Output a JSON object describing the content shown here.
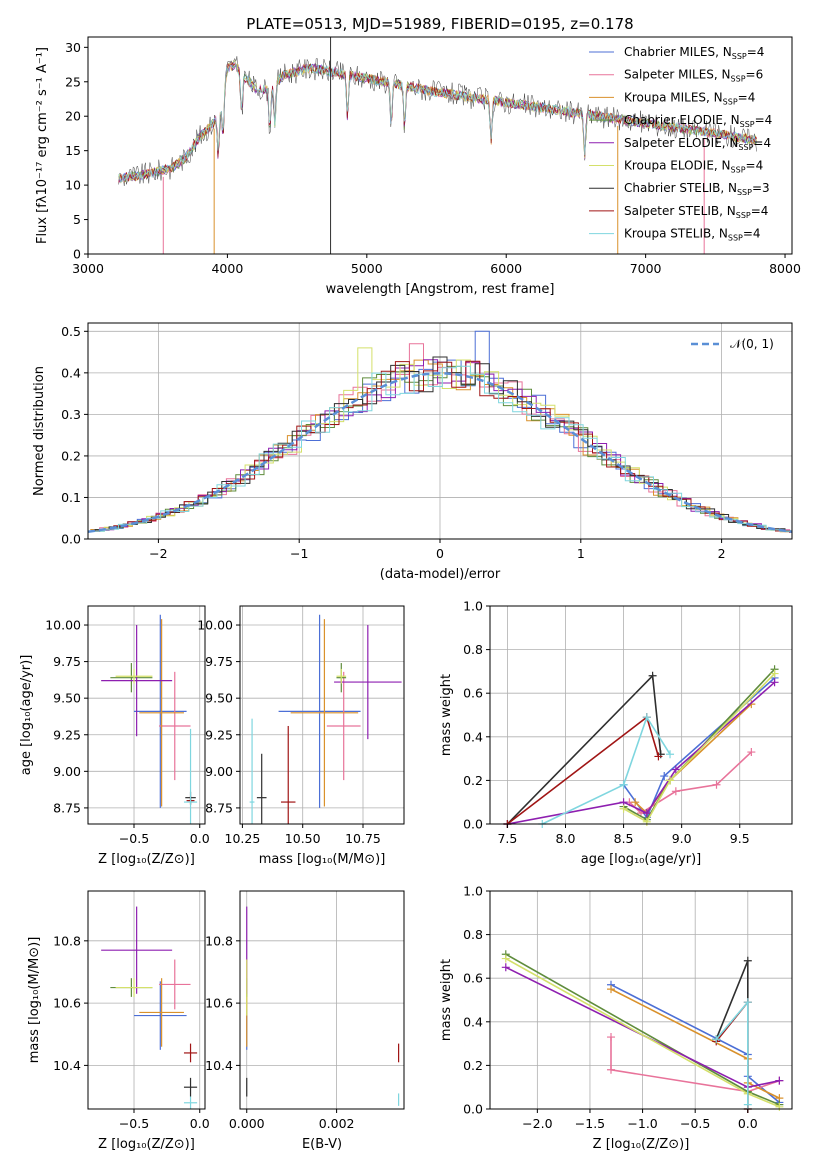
{
  "colors": {
    "chabrier_miles": "#4c6fd6",
    "salpeter_miles": "#e8739a",
    "kroupa_miles": "#d9912c",
    "chabrier_elodie": "#5f8c3c",
    "salpeter_elodie": "#8e1fb0",
    "kroupa_elodie": "#d4e06a",
    "chabrier_stelib": "#2f2f2f",
    "salpeter_stelib": "#a01515",
    "kroupa_stelib": "#7fd6df",
    "normal": "#5a8fd6",
    "grid": "#b0b0b0"
  },
  "chart_data": [
    {
      "type": "line",
      "title": "PLATE=0513, MJD=51989, FIBERID=0195, z=0.178",
      "xlabel": "wavelength [Angstrom, rest frame]",
      "ylabel": "Flux [fλ10⁻¹⁷ erg cm⁻² s⁻¹ A⁻¹]",
      "xlim": [
        3000,
        8050
      ],
      "ylim": [
        0,
        31.5
      ],
      "xticks": [
        3000,
        4000,
        5000,
        6000,
        7000,
        8000
      ],
      "yticks": [
        0,
        5,
        10,
        15,
        20,
        25,
        30
      ],
      "legend_position": "top-right",
      "series": [
        {
          "name": "Chabrier MILES, N",
          "sub": "SSP",
          "suffix": "=4",
          "color_key": "chabrier_miles"
        },
        {
          "name": "Salpeter MILES, N",
          "sub": "SSP",
          "suffix": "=6",
          "color_key": "salpeter_miles"
        },
        {
          "name": "Kroupa MILES, N",
          "sub": "SSP",
          "suffix": "=4",
          "color_key": "kroupa_miles"
        },
        {
          "name": "Chabrier ELODIE, N",
          "sub": "SSP",
          "suffix": "=4",
          "color_key": "chabrier_elodie"
        },
        {
          "name": "Salpeter ELODIE, N",
          "sub": "SSP",
          "suffix": "=4",
          "color_key": "salpeter_elodie"
        },
        {
          "name": "Kroupa ELODIE, N",
          "sub": "SSP",
          "suffix": "=4",
          "color_key": "kroupa_elodie"
        },
        {
          "name": "Chabrier STELIB, N",
          "sub": "SSP",
          "suffix": "=3",
          "color_key": "chabrier_stelib"
        },
        {
          "name": "Salpeter STELIB, N",
          "sub": "SSP",
          "suffix": "=4",
          "color_key": "salpeter_stelib"
        },
        {
          "name": "Kroupa STELIB, N",
          "sub": "SSP",
          "suffix": "=4",
          "color_key": "kroupa_stelib"
        }
      ],
      "continuum": {
        "x": [
          3220,
          3400,
          3600,
          3700,
          3800,
          3900,
          3950,
          4000,
          4050,
          4200,
          4300,
          4400,
          4600,
          5000,
          5500,
          6000,
          6500,
          7000,
          7500,
          7800
        ],
        "y": [
          11,
          11.5,
          12.5,
          14,
          17,
          19,
          21,
          27,
          27.5,
          24,
          24,
          26,
          27,
          25.5,
          23.5,
          22,
          20.5,
          19,
          17.5,
          16.5
        ]
      },
      "absorption_lines": [
        3934,
        3969,
        4102,
        4304,
        4341,
        4861,
        5175,
        5270,
        5890,
        6563
      ],
      "gaps": [
        {
          "x": 3540,
          "color_key": "salpeter_miles"
        },
        {
          "x": 3905,
          "color_key": "kroupa_miles"
        },
        {
          "x": 4740,
          "color_key": "chabrier_stelib"
        },
        {
          "x": 6800,
          "color_key": "kroupa_miles"
        },
        {
          "x": 7420,
          "color_key": "salpeter_miles"
        }
      ]
    },
    {
      "type": "line",
      "xlabel": "(data-model)/error",
      "ylabel": "Normed distribution",
      "xlim": [
        -2.5,
        2.5
      ],
      "ylim": [
        0,
        0.52
      ],
      "xticks": [
        -2,
        -1,
        0,
        1,
        2
      ],
      "xtick_labels": [
        "−2",
        "−1",
        "0",
        "1",
        "2"
      ],
      "yticks": [
        0.0,
        0.1,
        0.2,
        0.3,
        0.4,
        0.5
      ],
      "ytick_labels": [
        "0.0",
        "0.1",
        "0.2",
        "0.3",
        "0.4",
        "0.5"
      ],
      "legend": "𝒩(0, 1)",
      "legend_position": "top-right",
      "bin_width": 0.1,
      "series_color_keys": [
        "chabrier_miles",
        "salpeter_miles",
        "kroupa_miles",
        "chabrier_elodie",
        "salpeter_elodie",
        "kroupa_elodie",
        "chabrier_stelib",
        "salpeter_stelib",
        "kroupa_stelib"
      ],
      "peak_bins": [
        {
          "x": 0.35,
          "value": 0.5,
          "color_key": "chabrier_miles"
        },
        {
          "x": -0.15,
          "value": 0.47,
          "color_key": "salpeter_miles"
        },
        {
          "x": -0.55,
          "value": 0.46,
          "color_key": "kroupa_elodie"
        }
      ]
    },
    {
      "type": "scatter",
      "xlabel": "Z [log₁₀(Z/Z⊙)]",
      "ylabel": "age  [log₁₀(age/yr)]",
      "xlim": [
        -0.85,
        0.04
      ],
      "ylim": [
        8.64,
        10.13
      ],
      "xticks": [
        -0.5,
        0.0
      ],
      "xtick_labels": [
        "−0.5",
        "0.0"
      ],
      "yticks": [
        8.75,
        9.0,
        9.25,
        9.5,
        9.75,
        10.0
      ],
      "ytick_labels": [
        "8.75",
        "9.00",
        "9.25",
        "9.50",
        "9.75",
        "10.00"
      ],
      "points": [
        {
          "x": -0.3,
          "y": 9.41,
          "xerr": 0.2,
          "yerr": 0.66,
          "color_key": "chabrier_miles"
        },
        {
          "x": -0.19,
          "y": 9.31,
          "xerr": 0.12,
          "yerr": 0.37,
          "color_key": "salpeter_miles"
        },
        {
          "x": -0.29,
          "y": 9.4,
          "xerr": 0.17,
          "yerr": 0.64,
          "color_key": "kroupa_miles"
        },
        {
          "x": -0.52,
          "y": 9.64,
          "xerr": 0.16,
          "yerr": 0.1,
          "color_key": "chabrier_elodie"
        },
        {
          "x": -0.48,
          "y": 9.62,
          "xerr": 0.27,
          "yerr": 0.38,
          "color_key": "salpeter_elodie"
        },
        {
          "x": -0.5,
          "y": 9.65,
          "xerr": 0.14,
          "yerr": 0.05,
          "color_key": "kroupa_elodie"
        },
        {
          "x": -0.07,
          "y": 8.82,
          "xerr": 0.04,
          "yerr": 0.04,
          "color_key": "chabrier_stelib"
        },
        {
          "x": -0.07,
          "y": 8.8,
          "xerr": 0.03,
          "yerr": 0.03,
          "color_key": "salpeter_stelib"
        },
        {
          "x": -0.07,
          "y": 8.79,
          "xerr": 0.05,
          "yerr": 0.5,
          "color_key": "kroupa_stelib"
        }
      ]
    },
    {
      "type": "scatter",
      "xlabel": "mass [log₁₀(M/M⊙)]",
      "ylabel": "",
      "xlim": [
        10.24,
        10.92
      ],
      "ylim": [
        8.64,
        10.13
      ],
      "xticks": [
        10.25,
        10.5,
        10.75
      ],
      "xtick_labels": [
        "10.25",
        "10.50",
        "10.75"
      ],
      "yticks": [
        8.75,
        9.0,
        9.25,
        9.5,
        9.75,
        10.0
      ],
      "ytick_labels": [
        "8.75",
        "9.00",
        "9.25",
        "9.50",
        "9.75",
        "10.00"
      ],
      "points": [
        {
          "x": 10.57,
          "y": 9.41,
          "xerr": 0.17,
          "yerr": 0.66,
          "color_key": "chabrier_miles"
        },
        {
          "x": 10.67,
          "y": 9.31,
          "xerr": 0.07,
          "yerr": 0.37,
          "color_key": "salpeter_miles"
        },
        {
          "x": 10.59,
          "y": 9.4,
          "xerr": 0.14,
          "yerr": 0.64,
          "color_key": "kroupa_miles"
        },
        {
          "x": 10.66,
          "y": 9.64,
          "xerr": 0.02,
          "yerr": 0.1,
          "color_key": "chabrier_elodie"
        },
        {
          "x": 10.77,
          "y": 9.61,
          "xerr": 0.14,
          "yerr": 0.39,
          "color_key": "salpeter_elodie"
        },
        {
          "x": 10.66,
          "y": 9.65,
          "xerr": 0.02,
          "yerr": 0.05,
          "color_key": "kroupa_elodie"
        },
        {
          "x": 10.33,
          "y": 8.82,
          "xerr": 0.02,
          "yerr": 0.3,
          "color_key": "chabrier_stelib"
        },
        {
          "x": 10.44,
          "y": 8.79,
          "xerr": 0.03,
          "yerr": 0.52,
          "color_key": "salpeter_stelib"
        },
        {
          "x": 10.29,
          "y": 8.79,
          "xerr": 0.01,
          "yerr": 0.57,
          "color_key": "kroupa_stelib"
        }
      ]
    },
    {
      "type": "line",
      "xlabel": "age  [log₁₀(age/yr)]",
      "ylabel": "mass weight",
      "xlim": [
        7.35,
        9.95
      ],
      "ylim": [
        0,
        1
      ],
      "xticks": [
        7.5,
        8.0,
        8.5,
        9.0,
        9.5
      ],
      "xtick_labels": [
        "7.5",
        "8.0",
        "8.5",
        "9.0",
        "9.5"
      ],
      "yticks": [
        0,
        0.2,
        0.4,
        0.6,
        0.8,
        1.0
      ],
      "ytick_labels": [
        "0.0",
        "0.2",
        "0.4",
        "0.6",
        "0.8",
        "1.0"
      ],
      "series": [
        {
          "color_key": "chabrier_miles",
          "x": [
            8.5,
            8.7,
            8.85,
            9.8
          ],
          "y": [
            0.18,
            0.03,
            0.22,
            0.67
          ]
        },
        {
          "color_key": "salpeter_miles",
          "x": [
            8.55,
            8.65,
            8.95,
            9.3,
            9.6
          ],
          "y": [
            0.1,
            0.05,
            0.15,
            0.18,
            0.33
          ]
        },
        {
          "color_key": "kroupa_miles",
          "x": [
            8.6,
            8.7,
            8.9,
            9.6
          ],
          "y": [
            0.1,
            0.05,
            0.2,
            0.55
          ]
        },
        {
          "color_key": "chabrier_elodie",
          "x": [
            8.5,
            8.7,
            8.9,
            9.8
          ],
          "y": [
            0.08,
            0.02,
            0.2,
            0.71
          ]
        },
        {
          "color_key": "salpeter_elodie",
          "x": [
            7.5,
            8.5,
            8.7,
            8.95,
            9.8
          ],
          "y": [
            0.0,
            0.1,
            0.05,
            0.25,
            0.65
          ]
        },
        {
          "color_key": "kroupa_elodie",
          "x": [
            8.5,
            8.7,
            8.9,
            9.8
          ],
          "y": [
            0.07,
            0.01,
            0.2,
            0.69
          ]
        },
        {
          "color_key": "chabrier_stelib",
          "x": [
            7.5,
            8.75,
            8.82
          ],
          "y": [
            0.0,
            0.68,
            0.32
          ]
        },
        {
          "color_key": "salpeter_stelib",
          "x": [
            7.5,
            8.7,
            8.8
          ],
          "y": [
            0.0,
            0.49,
            0.31
          ]
        },
        {
          "color_key": "kroupa_stelib",
          "x": [
            7.8,
            8.5,
            8.7,
            8.9
          ],
          "y": [
            0.0,
            0.18,
            0.49,
            0.32
          ]
        }
      ]
    },
    {
      "type": "scatter",
      "xlabel": "Z [log₁₀(Z/Z⊙)]",
      "ylabel": "mass [log₁₀(M/M⊙)]",
      "xlim": [
        -0.85,
        0.04
      ],
      "ylim": [
        10.26,
        10.96
      ],
      "xticks": [
        -0.5,
        0.0
      ],
      "xtick_labels": [
        "−0.5",
        "0.0"
      ],
      "yticks": [
        10.4,
        10.6,
        10.8
      ],
      "ytick_labels": [
        "10.4",
        "10.6",
        "10.8"
      ],
      "points": [
        {
          "x": -0.3,
          "y": 10.56,
          "xerr": 0.2,
          "yerr": 0.11,
          "color_key": "chabrier_miles"
        },
        {
          "x": -0.19,
          "y": 10.66,
          "xerr": 0.12,
          "yerr": 0.08,
          "color_key": "salpeter_miles"
        },
        {
          "x": -0.29,
          "y": 10.57,
          "xerr": 0.17,
          "yerr": 0.11,
          "color_key": "kroupa_miles"
        },
        {
          "x": -0.52,
          "y": 10.65,
          "xerr": 0.16,
          "yerr": 0.03,
          "color_key": "chabrier_elodie"
        },
        {
          "x": -0.48,
          "y": 10.77,
          "xerr": 0.27,
          "yerr": 0.14,
          "color_key": "salpeter_elodie"
        },
        {
          "x": -0.5,
          "y": 10.65,
          "xerr": 0.14,
          "yerr": 0.03,
          "color_key": "kroupa_elodie"
        },
        {
          "x": -0.07,
          "y": 10.33,
          "xerr": 0.05,
          "yerr": 0.03,
          "color_key": "chabrier_stelib"
        },
        {
          "x": -0.07,
          "y": 10.44,
          "xerr": 0.05,
          "yerr": 0.03,
          "color_key": "salpeter_stelib"
        },
        {
          "x": -0.07,
          "y": 10.28,
          "xerr": 0.05,
          "yerr": 0.02,
          "color_key": "kroupa_stelib"
        }
      ]
    },
    {
      "type": "scatter",
      "xlabel": "E(B-V)",
      "ylabel": "",
      "xlim": [
        -0.00015,
        0.0035
      ],
      "ylim": [
        10.26,
        10.96
      ],
      "xticks": [
        0.0,
        0.002
      ],
      "xtick_labels": [
        "0.000",
        "0.002"
      ],
      "yticks": [
        10.4,
        10.6,
        10.8
      ],
      "ytick_labels": [
        "10.4",
        "10.6",
        "10.8"
      ],
      "points": [
        {
          "x": 0.0,
          "y": 10.56,
          "yerr": 0.11,
          "color_key": "chabrier_miles"
        },
        {
          "x": 0.0,
          "y": 10.66,
          "yerr": 0.08,
          "color_key": "salpeter_miles"
        },
        {
          "x": 0.0,
          "y": 10.57,
          "yerr": 0.11,
          "color_key": "kroupa_miles"
        },
        {
          "x": 0.0,
          "y": 10.65,
          "yerr": 0.03,
          "color_key": "chabrier_elodie"
        },
        {
          "x": 0.0,
          "y": 10.77,
          "yerr": 0.14,
          "color_key": "salpeter_elodie"
        },
        {
          "x": 0.0,
          "y": 10.65,
          "yerr": 0.09,
          "color_key": "kroupa_elodie"
        },
        {
          "x": 0.0,
          "y": 10.33,
          "yerr": 0.03,
          "color_key": "chabrier_stelib"
        },
        {
          "x": 0.00338,
          "y": 10.44,
          "yerr": 0.03,
          "color_key": "salpeter_stelib"
        },
        {
          "x": 0.00338,
          "y": 10.29,
          "yerr": 0.02,
          "color_key": "kroupa_stelib"
        }
      ]
    },
    {
      "type": "line",
      "xlabel": "Z [log₁₀(Z/Z⊙)]",
      "ylabel": "mass weight",
      "xlim": [
        -2.45,
        0.42
      ],
      "ylim": [
        0,
        1
      ],
      "xticks": [
        -2.0,
        -1.5,
        -1.0,
        -0.5,
        0.0
      ],
      "xtick_labels": [
        "−2.0",
        "−1.5",
        "−1.0",
        "−0.5",
        "0.0"
      ],
      "yticks": [
        0,
        0.2,
        0.4,
        0.6,
        0.8,
        1.0
      ],
      "ytick_labels": [
        "0.0",
        "0.2",
        "0.4",
        "0.6",
        "0.8",
        "1.0"
      ],
      "series": [
        {
          "color_key": "chabrier_miles",
          "x": [
            -1.3,
            0.0,
            0.0,
            0.3
          ],
          "y": [
            0.57,
            0.25,
            0.15,
            0.03
          ]
        },
        {
          "color_key": "salpeter_miles",
          "x": [
            -1.3,
            -1.3,
            0.0,
            0.3
          ],
          "y": [
            0.33,
            0.18,
            0.08,
            0.13
          ]
        },
        {
          "color_key": "kroupa_miles",
          "x": [
            -1.3,
            0.0,
            0.0,
            0.3
          ],
          "y": [
            0.55,
            0.23,
            0.12,
            0.05
          ]
        },
        {
          "color_key": "chabrier_elodie",
          "x": [
            -2.3,
            0.0,
            0.3
          ],
          "y": [
            0.71,
            0.08,
            0.02
          ]
        },
        {
          "color_key": "salpeter_elodie",
          "x": [
            -2.3,
            0.0,
            0.3
          ],
          "y": [
            0.65,
            0.1,
            0.13
          ]
        },
        {
          "color_key": "kroupa_elodie",
          "x": [
            -2.3,
            0.0,
            0.3
          ],
          "y": [
            0.69,
            0.07,
            0.01
          ]
        },
        {
          "color_key": "chabrier_stelib",
          "x": [
            -0.3,
            0.0,
            0.0
          ],
          "y": [
            0.32,
            0.68,
            0.0
          ]
        },
        {
          "color_key": "salpeter_stelib",
          "x": [
            -0.3,
            0.0,
            0.0
          ],
          "y": [
            0.31,
            0.49,
            0.0
          ]
        },
        {
          "color_key": "kroupa_stelib",
          "x": [
            -0.3,
            0.0,
            0.0
          ],
          "y": [
            0.32,
            0.49,
            0.02
          ]
        }
      ]
    }
  ]
}
